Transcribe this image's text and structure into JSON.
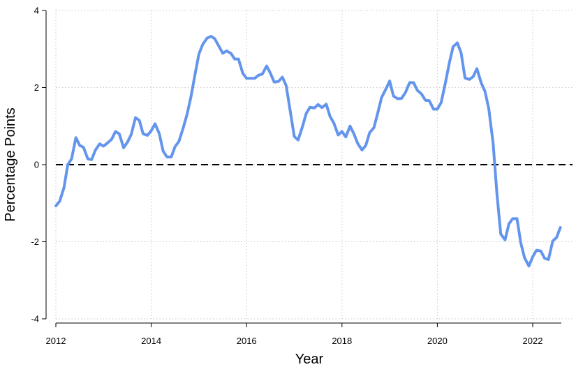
{
  "chart_data": {
    "type": "line",
    "xlabel": "Year",
    "ylabel": "Percentage Points",
    "xlim": [
      2012,
      2022.6
    ],
    "ylim": [
      -4,
      4
    ],
    "x_ticks": [
      2012,
      2014,
      2016,
      2018,
      2020,
      2022
    ],
    "y_ticks": [
      4,
      2,
      0,
      -2,
      -4
    ],
    "x_tick_labels": [
      "2012",
      "2014",
      "2016",
      "2018",
      "2020",
      "2022"
    ],
    "y_tick_labels": [
      "4",
      "2",
      "0",
      "-2",
      "-4"
    ],
    "grid": true,
    "reference_line": {
      "y": 0,
      "style": "dashed"
    },
    "colors": {
      "series": "#6495ed",
      "reference": "#000000",
      "grid": "#c8c8c8"
    },
    "series": [
      {
        "x": [
          2012.0,
          2012.08,
          2012.17,
          2012.25,
          2012.33,
          2012.42,
          2012.5,
          2012.58,
          2012.67,
          2012.75,
          2012.83,
          2012.92,
          2013.0,
          2013.08,
          2013.17,
          2013.25,
          2013.33,
          2013.42,
          2013.5,
          2013.58,
          2013.67,
          2013.75,
          2013.83,
          2013.92,
          2014.0,
          2014.08,
          2014.17,
          2014.25,
          2014.33,
          2014.42,
          2014.5,
          2014.58,
          2014.67,
          2014.75,
          2014.83,
          2014.92,
          2015.0,
          2015.08,
          2015.17,
          2015.25,
          2015.33,
          2015.42,
          2015.5,
          2015.58,
          2015.67,
          2015.75,
          2015.83,
          2015.92,
          2016.0,
          2016.08,
          2016.17,
          2016.25,
          2016.33,
          2016.42,
          2016.5,
          2016.58,
          2016.67,
          2016.75,
          2016.83,
          2016.92,
          2017.0,
          2017.08,
          2017.17,
          2017.25,
          2017.33,
          2017.42,
          2017.5,
          2017.58,
          2017.67,
          2017.75,
          2017.83,
          2017.92,
          2018.0,
          2018.08,
          2018.17,
          2018.25,
          2018.33,
          2018.42,
          2018.5,
          2018.58,
          2018.67,
          2018.75,
          2018.83,
          2018.92,
          2019.0,
          2019.08,
          2019.17,
          2019.25,
          2019.33,
          2019.42,
          2019.5,
          2019.58,
          2019.67,
          2019.75,
          2019.83,
          2019.92,
          2020.0,
          2020.08,
          2020.17,
          2020.25,
          2020.33,
          2020.42,
          2020.5,
          2020.58,
          2020.67,
          2020.75,
          2020.83,
          2020.92,
          2021.0,
          2021.08,
          2021.17,
          2021.25,
          2021.33,
          2021.42,
          2021.5,
          2021.58,
          2021.67,
          2021.75,
          2021.83,
          2021.92,
          2022.0,
          2022.08,
          2022.17,
          2022.25,
          2022.33,
          2022.42,
          2022.5,
          2022.58
        ],
        "values": [
          -1.07,
          -0.95,
          -0.6,
          0.0,
          0.15,
          0.7,
          0.5,
          0.45,
          0.15,
          0.13,
          0.38,
          0.54,
          0.48,
          0.56,
          0.66,
          0.86,
          0.8,
          0.44,
          0.58,
          0.78,
          1.22,
          1.15,
          0.8,
          0.76,
          0.88,
          1.06,
          0.8,
          0.35,
          0.2,
          0.2,
          0.47,
          0.6,
          0.95,
          1.3,
          1.74,
          2.35,
          2.87,
          3.12,
          3.28,
          3.33,
          3.27,
          3.07,
          2.89,
          2.95,
          2.89,
          2.74,
          2.74,
          2.37,
          2.24,
          2.24,
          2.24,
          2.32,
          2.35,
          2.56,
          2.37,
          2.14,
          2.16,
          2.27,
          2.05,
          1.35,
          0.73,
          0.64,
          0.98,
          1.33,
          1.49,
          1.47,
          1.56,
          1.48,
          1.57,
          1.25,
          1.08,
          0.77,
          0.86,
          0.72,
          1.0,
          0.8,
          0.55,
          0.38,
          0.5,
          0.83,
          0.96,
          1.34,
          1.74,
          1.96,
          2.17,
          1.78,
          1.71,
          1.72,
          1.87,
          2.13,
          2.13,
          1.93,
          1.83,
          1.67,
          1.66,
          1.44,
          1.44,
          1.61,
          2.13,
          2.63,
          3.06,
          3.16,
          2.89,
          2.25,
          2.21,
          2.28,
          2.49,
          2.12,
          1.9,
          1.44,
          0.55,
          -0.76,
          -1.8,
          -1.95,
          -1.54,
          -1.4,
          -1.4,
          -2.03,
          -2.42,
          -2.63,
          -2.39,
          -2.22,
          -2.24,
          -2.43,
          -2.46,
          -1.98,
          -1.89,
          -1.63
        ]
      }
    ]
  }
}
